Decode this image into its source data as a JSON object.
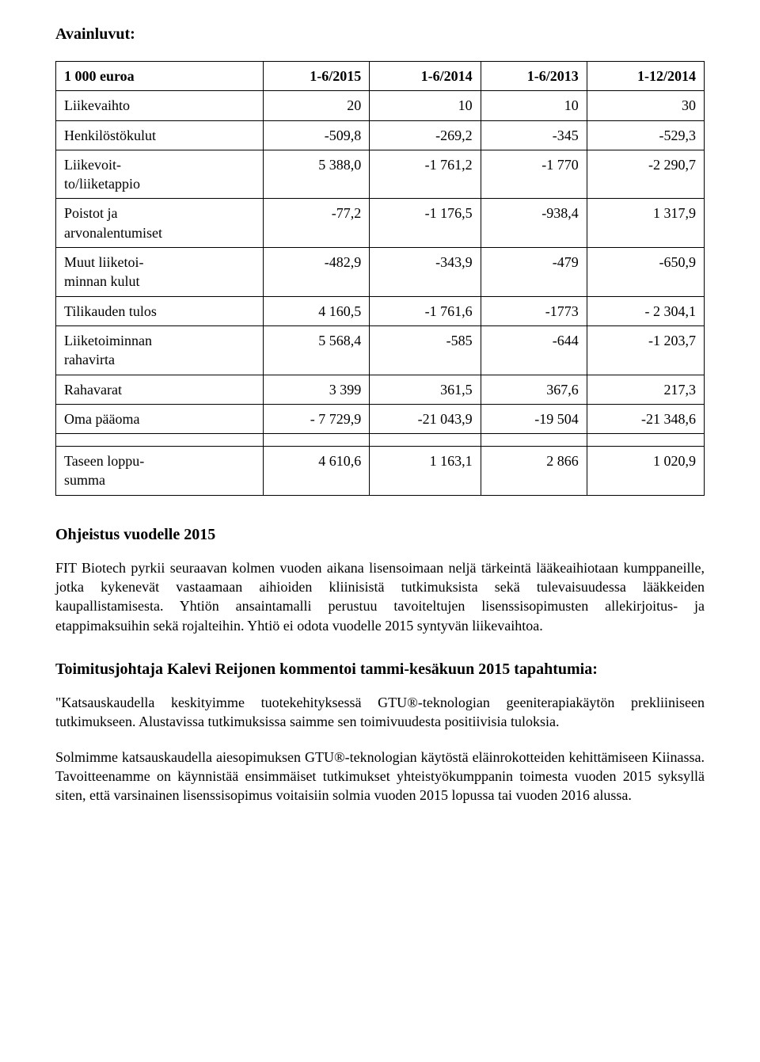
{
  "title": "Avainluvut:",
  "table": {
    "columns": [
      "1 000 euroa",
      "1-6/2015",
      "1-6/2014",
      "1-6/2013",
      "1-12/2014"
    ],
    "rows": [
      {
        "label": "Liikevaihto",
        "v": [
          "20",
          "10",
          "10",
          "30"
        ]
      },
      {
        "label": "Henkilöstökulut",
        "v": [
          "-509,8",
          "-269,2",
          "-345",
          "-529,3"
        ]
      },
      {
        "label": "Liikevoit-\nto/liiketappio",
        "v": [
          "5 388,0",
          "-1 761,2",
          "-1 770",
          "-2 290,7"
        ]
      },
      {
        "label": "Poistot ja\narvonalentumiset",
        "v": [
          "-77,2",
          "-1 176,5",
          "-938,4",
          "1 317,9"
        ]
      },
      {
        "label": "Muut liiketoi-\nminnan kulut",
        "v": [
          "-482,9",
          "-343,9",
          "-479",
          "-650,9"
        ]
      },
      {
        "label": "Tilikauden tulos",
        "v": [
          "4 160,5",
          "-1 761,6",
          "-1773",
          "- 2 304,1"
        ]
      },
      {
        "label": "Liiketoiminnan\nrahavirta",
        "v": [
          "5 568,4",
          "-585",
          "-644",
          "-1 203,7"
        ]
      },
      {
        "label": "Rahavarat",
        "v": [
          "3 399",
          "361,5",
          "367,6",
          "217,3"
        ]
      },
      {
        "label": "Oma pääoma",
        "v": [
          "- 7 729,9",
          "-21 043,9",
          "-19 504",
          "-21 348,6"
        ]
      }
    ],
    "footer_row": {
      "label": "Taseen loppu-\nsumma",
      "v": [
        "4 610,6",
        "1 163,1",
        "2 866",
        "1 020,9"
      ]
    }
  },
  "guidance": {
    "heading": "Ohjeistus vuodelle 2015",
    "text": "FIT Biotech pyrkii seuraavan kolmen vuoden aikana lisensoimaan neljä tärkeintä lääkeaihiotaan kumppaneille, jotka kykenevät vastaamaan aihioiden kliinisistä tutkimuksista sekä tulevaisuudessa lääkkeiden kaupallistamisesta. Yhtiön ansaintamalli perustuu tavoiteltujen lisenssisopimusten allekirjoitus- ja etappimaksuihin sekä rojalteihin. Yhtiö ei odota vuodelle 2015 syntyvän liikevaihtoa."
  },
  "ceo": {
    "heading": "Toimitusjohtaja Kalevi Reijonen kommentoi tammi-kesäkuun 2015 tapahtumia:",
    "p1": "\"Katsauskaudella keskityimme tuotekehityksessä GTU®-teknologian geeniterapiakäytön prekliiniseen tutkimukseen. Alustavissa tutkimuksissa saimme sen toimivuudesta positiivisia tuloksia.",
    "p2": "Solmimme katsauskaudella aiesopimuksen GTU®-teknologian käytöstä eläinrokotteiden kehittämiseen Kiinassa. Tavoitteenamme on käynnistää ensimmäiset tutkimukset yhteistyökumppanin toimesta vuoden 2015 syksyllä siten, että varsinainen lisenssisopimus voitaisiin solmia vuoden 2015 lopussa tai vuoden 2016 alussa."
  }
}
